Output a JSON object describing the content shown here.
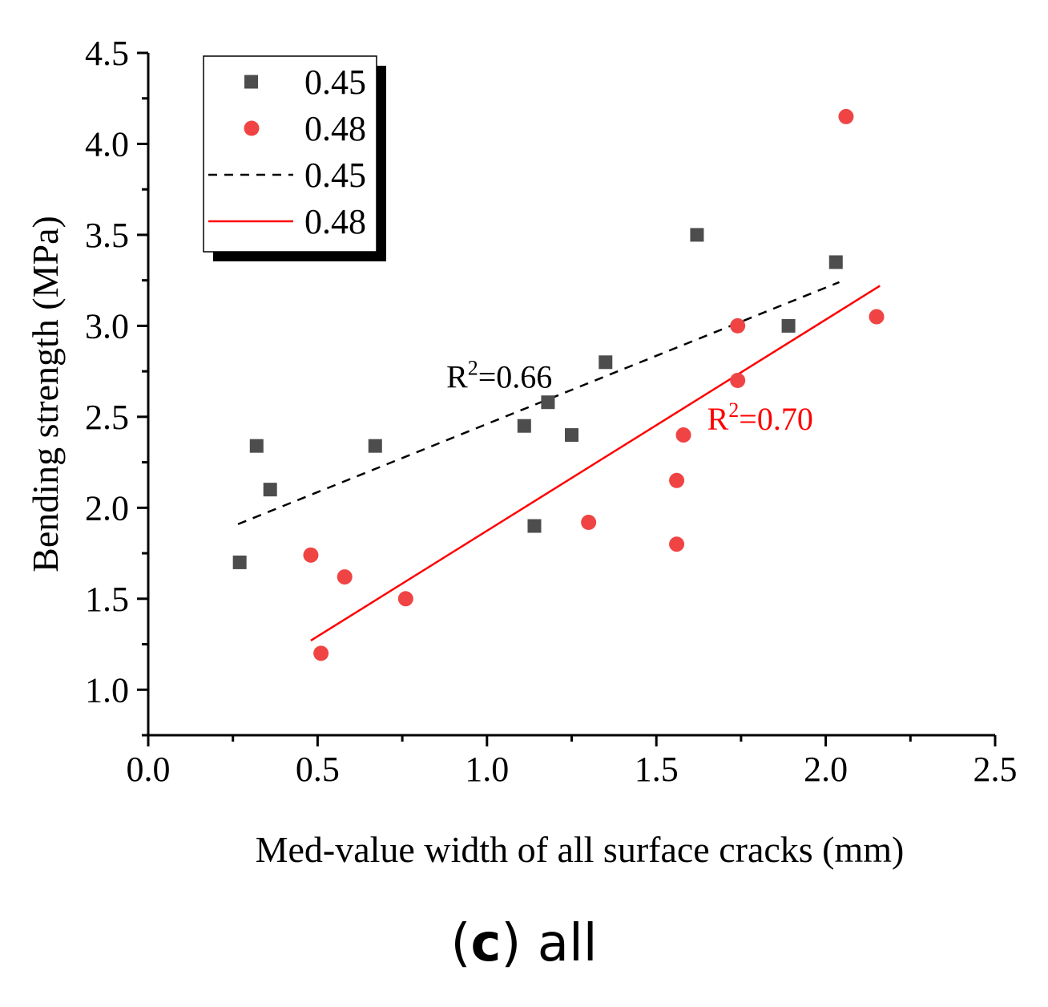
{
  "chart_data": {
    "type": "scatter",
    "title": "",
    "xlabel": "Med-value width of all surface cracks (mm)",
    "ylabel": "Bending strength (MPa)",
    "xlim": [
      0.0,
      2.5
    ],
    "ylim": [
      0.75,
      4.5
    ],
    "x_ticks": [
      "0.0",
      "0.5",
      "1.0",
      "1.5",
      "2.0",
      "2.5"
    ],
    "y_ticks": [
      "1.0",
      "1.5",
      "2.0",
      "2.5",
      "3.0",
      "3.5",
      "4.0",
      "4.5"
    ],
    "grid": false,
    "legend_position": "top-left",
    "series": [
      {
        "name": "0.45",
        "marker": "square",
        "color": "#4d4d4d",
        "x": [
          0.27,
          0.32,
          0.36,
          0.67,
          1.11,
          1.14,
          1.18,
          1.25,
          1.35,
          1.62,
          1.89,
          2.03
        ],
        "y": [
          1.7,
          2.34,
          2.1,
          2.34,
          2.45,
          1.9,
          2.58,
          2.4,
          2.8,
          3.5,
          3.0,
          3.35
        ]
      },
      {
        "name": "0.48",
        "marker": "circle",
        "color": "#f04444",
        "x": [
          0.48,
          0.51,
          0.58,
          0.76,
          1.3,
          1.56,
          1.56,
          1.58,
          1.74,
          1.74,
          2.06,
          2.15
        ],
        "y": [
          1.74,
          1.2,
          1.62,
          1.5,
          1.92,
          1.8,
          2.15,
          2.4,
          2.7,
          3.0,
          4.15,
          3.05
        ]
      }
    ],
    "fits": [
      {
        "name": "0.45",
        "style": "dashed",
        "color": "#000000",
        "x": [
          0.265,
          2.04
        ],
        "y": [
          1.91,
          3.24
        ]
      },
      {
        "name": "0.48",
        "style": "solid",
        "color": "#ff0000",
        "x": [
          0.48,
          2.16
        ],
        "y": [
          1.27,
          3.22
        ]
      }
    ],
    "annotations": [
      {
        "base": "R",
        "sup": "2",
        "rest": "=0.66",
        "color": "#000000",
        "x": 0.88,
        "y": 2.66
      },
      {
        "base": "R",
        "sup": "2",
        "rest": "=0.70",
        "color": "#ff0000",
        "x": 1.65,
        "y": 2.43
      }
    ]
  },
  "caption": {
    "letter": "c",
    "open": "(",
    "close": ")",
    "text": " all"
  }
}
